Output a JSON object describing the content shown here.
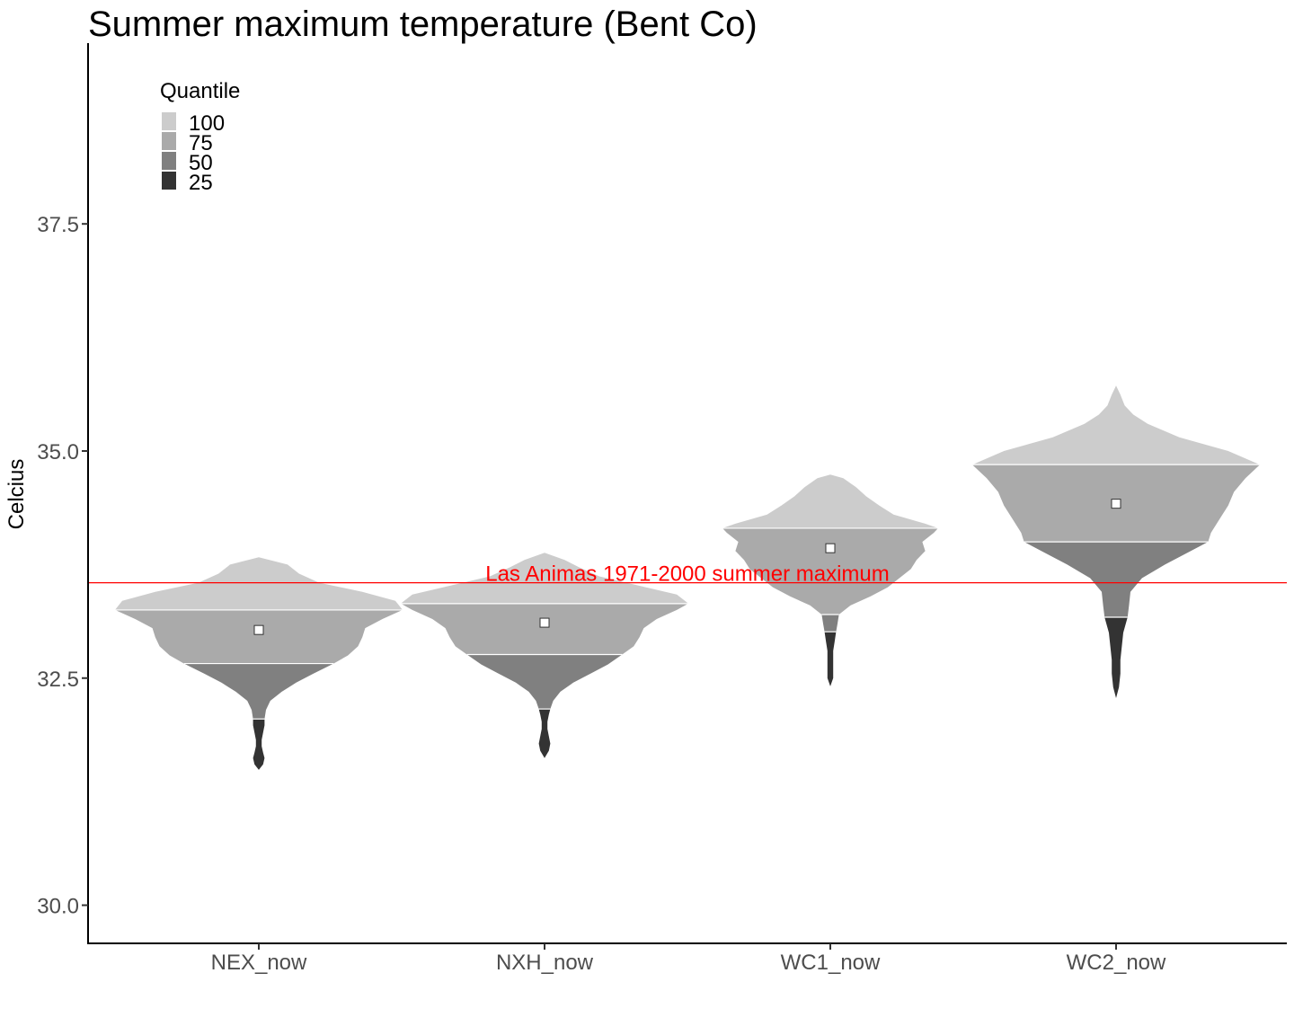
{
  "chart_data": {
    "type": "violin",
    "title": "Summer maximum temperature (Bent Co)",
    "xlabel": "",
    "ylabel": "Celcius",
    "ylim": [
      29.58,
      39.49
    ],
    "yticks": [
      30.0,
      32.5,
      35.0,
      37.5
    ],
    "ytick_labels": [
      "30.0",
      "32.5",
      "35.0",
      "37.5"
    ],
    "categories": [
      "NEX_now",
      "NXH_now",
      "WC1_now",
      "WC2_now"
    ],
    "legend": {
      "title": "Quantile",
      "position": "top-left",
      "items": [
        {
          "label": "100",
          "color": "#cccccc"
        },
        {
          "label": "75",
          "color": "#aaaaaa"
        },
        {
          "label": "50",
          "color": "#808080"
        },
        {
          "label": "25",
          "color": "#333333"
        }
      ]
    },
    "reference_line": {
      "value": 33.55,
      "label": "Las Animas 1971-2000 summer maximum",
      "color": "#ff0000"
    },
    "series": [
      {
        "category": "NEX_now",
        "min": 31.49,
        "q25": 32.05,
        "q50": 32.66,
        "q75": 33.25,
        "max": 33.83,
        "mean": 33.03,
        "profile": [
          [
            31.49,
            0.0
          ],
          [
            31.55,
            0.03
          ],
          [
            31.62,
            0.04
          ],
          [
            31.68,
            0.03
          ],
          [
            31.75,
            0.02
          ],
          [
            31.82,
            0.02
          ],
          [
            31.9,
            0.03
          ],
          [
            31.98,
            0.04
          ],
          [
            32.05,
            0.04
          ],
          [
            32.15,
            0.05
          ],
          [
            32.25,
            0.08
          ],
          [
            32.35,
            0.16
          ],
          [
            32.45,
            0.26
          ],
          [
            32.55,
            0.38
          ],
          [
            32.66,
            0.52
          ],
          [
            32.75,
            0.62
          ],
          [
            32.85,
            0.69
          ],
          [
            32.95,
            0.72
          ],
          [
            33.05,
            0.74
          ],
          [
            33.15,
            0.86
          ],
          [
            33.25,
            1.0
          ],
          [
            33.35,
            0.95
          ],
          [
            33.45,
            0.72
          ],
          [
            33.55,
            0.42
          ],
          [
            33.65,
            0.28
          ],
          [
            33.75,
            0.2
          ],
          [
            33.83,
            0.0
          ]
        ]
      },
      {
        "category": "NXH_now",
        "min": 31.62,
        "q25": 32.16,
        "q50": 32.76,
        "q75": 33.32,
        "max": 33.88,
        "mean": 33.11,
        "profile": [
          [
            31.62,
            0.0
          ],
          [
            31.7,
            0.03
          ],
          [
            31.78,
            0.04
          ],
          [
            31.86,
            0.03
          ],
          [
            31.94,
            0.02
          ],
          [
            32.02,
            0.02
          ],
          [
            32.1,
            0.03
          ],
          [
            32.16,
            0.04
          ],
          [
            32.25,
            0.06
          ],
          [
            32.35,
            0.11
          ],
          [
            32.45,
            0.2
          ],
          [
            32.55,
            0.32
          ],
          [
            32.65,
            0.44
          ],
          [
            32.76,
            0.54
          ],
          [
            32.85,
            0.62
          ],
          [
            32.95,
            0.66
          ],
          [
            33.05,
            0.69
          ],
          [
            33.15,
            0.78
          ],
          [
            33.25,
            0.92
          ],
          [
            33.32,
            1.0
          ],
          [
            33.42,
            0.92
          ],
          [
            33.52,
            0.65
          ],
          [
            33.62,
            0.38
          ],
          [
            33.72,
            0.24
          ],
          [
            33.8,
            0.14
          ],
          [
            33.88,
            0.0
          ]
        ]
      },
      {
        "category": "WC1_now",
        "min": 32.41,
        "q25": 33.01,
        "q50": 33.2,
        "q75": 34.15,
        "max": 34.74,
        "mean": 33.93,
        "profile": [
          [
            32.41,
            0.0
          ],
          [
            32.5,
            0.02
          ],
          [
            32.6,
            0.02
          ],
          [
            32.7,
            0.02
          ],
          [
            32.8,
            0.02
          ],
          [
            32.9,
            0.03
          ],
          [
            33.01,
            0.04
          ],
          [
            33.1,
            0.05
          ],
          [
            33.2,
            0.06
          ],
          [
            33.3,
            0.14
          ],
          [
            33.4,
            0.28
          ],
          [
            33.5,
            0.4
          ],
          [
            33.6,
            0.48
          ],
          [
            33.7,
            0.56
          ],
          [
            33.8,
            0.6
          ],
          [
            33.9,
            0.66
          ],
          [
            34.0,
            0.64
          ],
          [
            34.1,
            0.72
          ],
          [
            34.15,
            0.75
          ],
          [
            34.2,
            0.66
          ],
          [
            34.3,
            0.44
          ],
          [
            34.4,
            0.34
          ],
          [
            34.5,
            0.25
          ],
          [
            34.6,
            0.18
          ],
          [
            34.7,
            0.09
          ],
          [
            34.74,
            0.0
          ]
        ]
      },
      {
        "category": "WC2_now",
        "min": 32.28,
        "q25": 33.17,
        "q50": 34.0,
        "q75": 34.85,
        "max": 35.72,
        "mean": 34.42,
        "profile": [
          [
            32.28,
            0.0
          ],
          [
            32.4,
            0.02
          ],
          [
            32.55,
            0.03
          ],
          [
            32.7,
            0.03
          ],
          [
            32.85,
            0.04
          ],
          [
            33.0,
            0.05
          ],
          [
            33.17,
            0.08
          ],
          [
            33.3,
            0.09
          ],
          [
            33.45,
            0.1
          ],
          [
            33.6,
            0.18
          ],
          [
            33.75,
            0.34
          ],
          [
            33.9,
            0.52
          ],
          [
            34.0,
            0.64
          ],
          [
            34.1,
            0.66
          ],
          [
            34.25,
            0.72
          ],
          [
            34.4,
            0.78
          ],
          [
            34.55,
            0.82
          ],
          [
            34.7,
            0.9
          ],
          [
            34.85,
            1.0
          ],
          [
            35.0,
            0.78
          ],
          [
            35.15,
            0.44
          ],
          [
            35.3,
            0.22
          ],
          [
            35.4,
            0.12
          ],
          [
            35.5,
            0.06
          ],
          [
            35.62,
            0.03
          ],
          [
            35.72,
            0.0
          ]
        ]
      }
    ]
  }
}
